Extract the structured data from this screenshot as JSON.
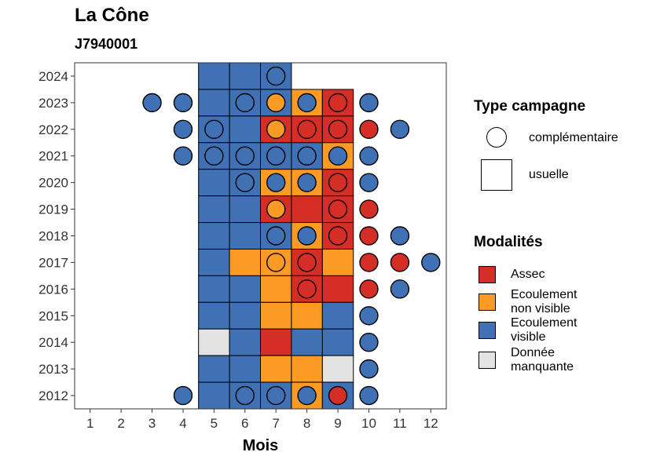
{
  "header": {
    "title": "La Cône",
    "subtitle": "J7940001"
  },
  "chart_data": {
    "type": "heatmap",
    "xlabel": "Mois",
    "ylabel": "",
    "x_ticks": [
      1,
      2,
      3,
      4,
      5,
      6,
      7,
      8,
      9,
      10,
      11,
      12
    ],
    "y_ticks": [
      2012,
      2013,
      2014,
      2015,
      2016,
      2017,
      2018,
      2019,
      2020,
      2021,
      2022,
      2023,
      2024
    ],
    "xlim": [
      0.5,
      12.5
    ],
    "ylim": [
      2011.5,
      2024.5
    ],
    "colors": {
      "A": "#d52e26",
      "N": "#fc9a26",
      "V": "#4071b4",
      "M": "#e3e3e3"
    },
    "legend_type": {
      "title": "Type campagne",
      "items": [
        {
          "shape": "circle",
          "label": "complémentaire"
        },
        {
          "shape": "square",
          "label": "usuelle"
        }
      ]
    },
    "legend_modalites": {
      "title": "Modalités",
      "items": [
        {
          "code": "A",
          "label": "Assec",
          "label_lines": [
            "Assec"
          ]
        },
        {
          "code": "N",
          "label": "Ecoulement non visible",
          "label_lines": [
            "Ecoulement",
            "non visible"
          ]
        },
        {
          "code": "V",
          "label": "Ecoulement visible",
          "label_lines": [
            "Ecoulement",
            "visible"
          ]
        },
        {
          "code": "M",
          "label": "Donnée manquante",
          "label_lines": [
            "Donnée",
            "manquante"
          ]
        }
      ]
    },
    "usual": [
      {
        "year": 2024,
        "months": [
          "V",
          "V",
          "V"
        ]
      },
      {
        "year": 2023,
        "months": [
          "V",
          "V",
          "V",
          "N",
          "A"
        ]
      },
      {
        "year": 2022,
        "months": [
          "V",
          "V",
          "A",
          "A",
          "A"
        ]
      },
      {
        "year": 2021,
        "months": [
          "V",
          "V",
          "V",
          "V",
          "N"
        ]
      },
      {
        "year": 2020,
        "months": [
          "V",
          "V",
          "N",
          "N",
          "A"
        ]
      },
      {
        "year": 2019,
        "months": [
          "V",
          "V",
          "A",
          "A",
          "A"
        ]
      },
      {
        "year": 2018,
        "months": [
          "V",
          "V",
          "V",
          "N",
          "A"
        ]
      },
      {
        "year": 2017,
        "months": [
          "V",
          "N",
          "N",
          "A",
          "N"
        ]
      },
      {
        "year": 2016,
        "months": [
          "V",
          "V",
          "N",
          "A",
          "A"
        ]
      },
      {
        "year": 2015,
        "months": [
          "V",
          "V",
          "N",
          "N",
          "V"
        ]
      },
      {
        "year": 2014,
        "months": [
          "M",
          "V",
          "A",
          "V",
          "V"
        ]
      },
      {
        "year": 2013,
        "months": [
          "V",
          "V",
          "N",
          "N",
          "M"
        ]
      },
      {
        "year": 2012,
        "months": [
          "V",
          "V",
          "V",
          "N",
          "V"
        ]
      }
    ],
    "complementary": [
      {
        "year": 2024,
        "month": 7,
        "code": "V"
      },
      {
        "year": 2023,
        "month": 3,
        "code": "V"
      },
      {
        "year": 2023,
        "month": 4,
        "code": "V"
      },
      {
        "year": 2023,
        "month": 6,
        "code": "V"
      },
      {
        "year": 2023,
        "month": 7,
        "code": "N"
      },
      {
        "year": 2023,
        "month": 8,
        "code": "V"
      },
      {
        "year": 2023,
        "month": 9,
        "code": "A"
      },
      {
        "year": 2023,
        "month": 10,
        "code": "V"
      },
      {
        "year": 2022,
        "month": 4,
        "code": "V"
      },
      {
        "year": 2022,
        "month": 5,
        "code": "V"
      },
      {
        "year": 2022,
        "month": 7,
        "code": "N"
      },
      {
        "year": 2022,
        "month": 8,
        "code": "A"
      },
      {
        "year": 2022,
        "month": 9,
        "code": "A"
      },
      {
        "year": 2022,
        "month": 10,
        "code": "A"
      },
      {
        "year": 2022,
        "month": 11,
        "code": "V"
      },
      {
        "year": 2021,
        "month": 4,
        "code": "V"
      },
      {
        "year": 2021,
        "month": 5,
        "code": "V"
      },
      {
        "year": 2021,
        "month": 6,
        "code": "V"
      },
      {
        "year": 2021,
        "month": 7,
        "code": "V"
      },
      {
        "year": 2021,
        "month": 8,
        "code": "V"
      },
      {
        "year": 2021,
        "month": 9,
        "code": "V"
      },
      {
        "year": 2021,
        "month": 10,
        "code": "V"
      },
      {
        "year": 2020,
        "month": 6,
        "code": "V"
      },
      {
        "year": 2020,
        "month": 7,
        "code": "V"
      },
      {
        "year": 2020,
        "month": 8,
        "code": "V"
      },
      {
        "year": 2020,
        "month": 9,
        "code": "A"
      },
      {
        "year": 2020,
        "month": 10,
        "code": "V"
      },
      {
        "year": 2019,
        "month": 7,
        "code": "N"
      },
      {
        "year": 2019,
        "month": 9,
        "code": "A"
      },
      {
        "year": 2019,
        "month": 10,
        "code": "A"
      },
      {
        "year": 2018,
        "month": 7,
        "code": "V"
      },
      {
        "year": 2018,
        "month": 8,
        "code": "V"
      },
      {
        "year": 2018,
        "month": 9,
        "code": "A"
      },
      {
        "year": 2018,
        "month": 10,
        "code": "A"
      },
      {
        "year": 2018,
        "month": 11,
        "code": "V"
      },
      {
        "year": 2017,
        "month": 7,
        "code": "N"
      },
      {
        "year": 2017,
        "month": 8,
        "code": "A"
      },
      {
        "year": 2017,
        "month": 10,
        "code": "A"
      },
      {
        "year": 2017,
        "month": 11,
        "code": "A"
      },
      {
        "year": 2017,
        "month": 12,
        "code": "V"
      },
      {
        "year": 2016,
        "month": 8,
        "code": "A"
      },
      {
        "year": 2016,
        "month": 10,
        "code": "A"
      },
      {
        "year": 2016,
        "month": 11,
        "code": "V"
      },
      {
        "year": 2015,
        "month": 10,
        "code": "V"
      },
      {
        "year": 2014,
        "month": 10,
        "code": "V"
      },
      {
        "year": 2013,
        "month": 10,
        "code": "V"
      },
      {
        "year": 2012,
        "month": 4,
        "code": "V"
      },
      {
        "year": 2012,
        "month": 6,
        "code": "V"
      },
      {
        "year": 2012,
        "month": 7,
        "code": "V"
      },
      {
        "year": 2012,
        "month": 8,
        "code": "V"
      },
      {
        "year": 2012,
        "month": 9,
        "code": "A"
      },
      {
        "year": 2012,
        "month": 10,
        "code": "V"
      }
    ]
  }
}
